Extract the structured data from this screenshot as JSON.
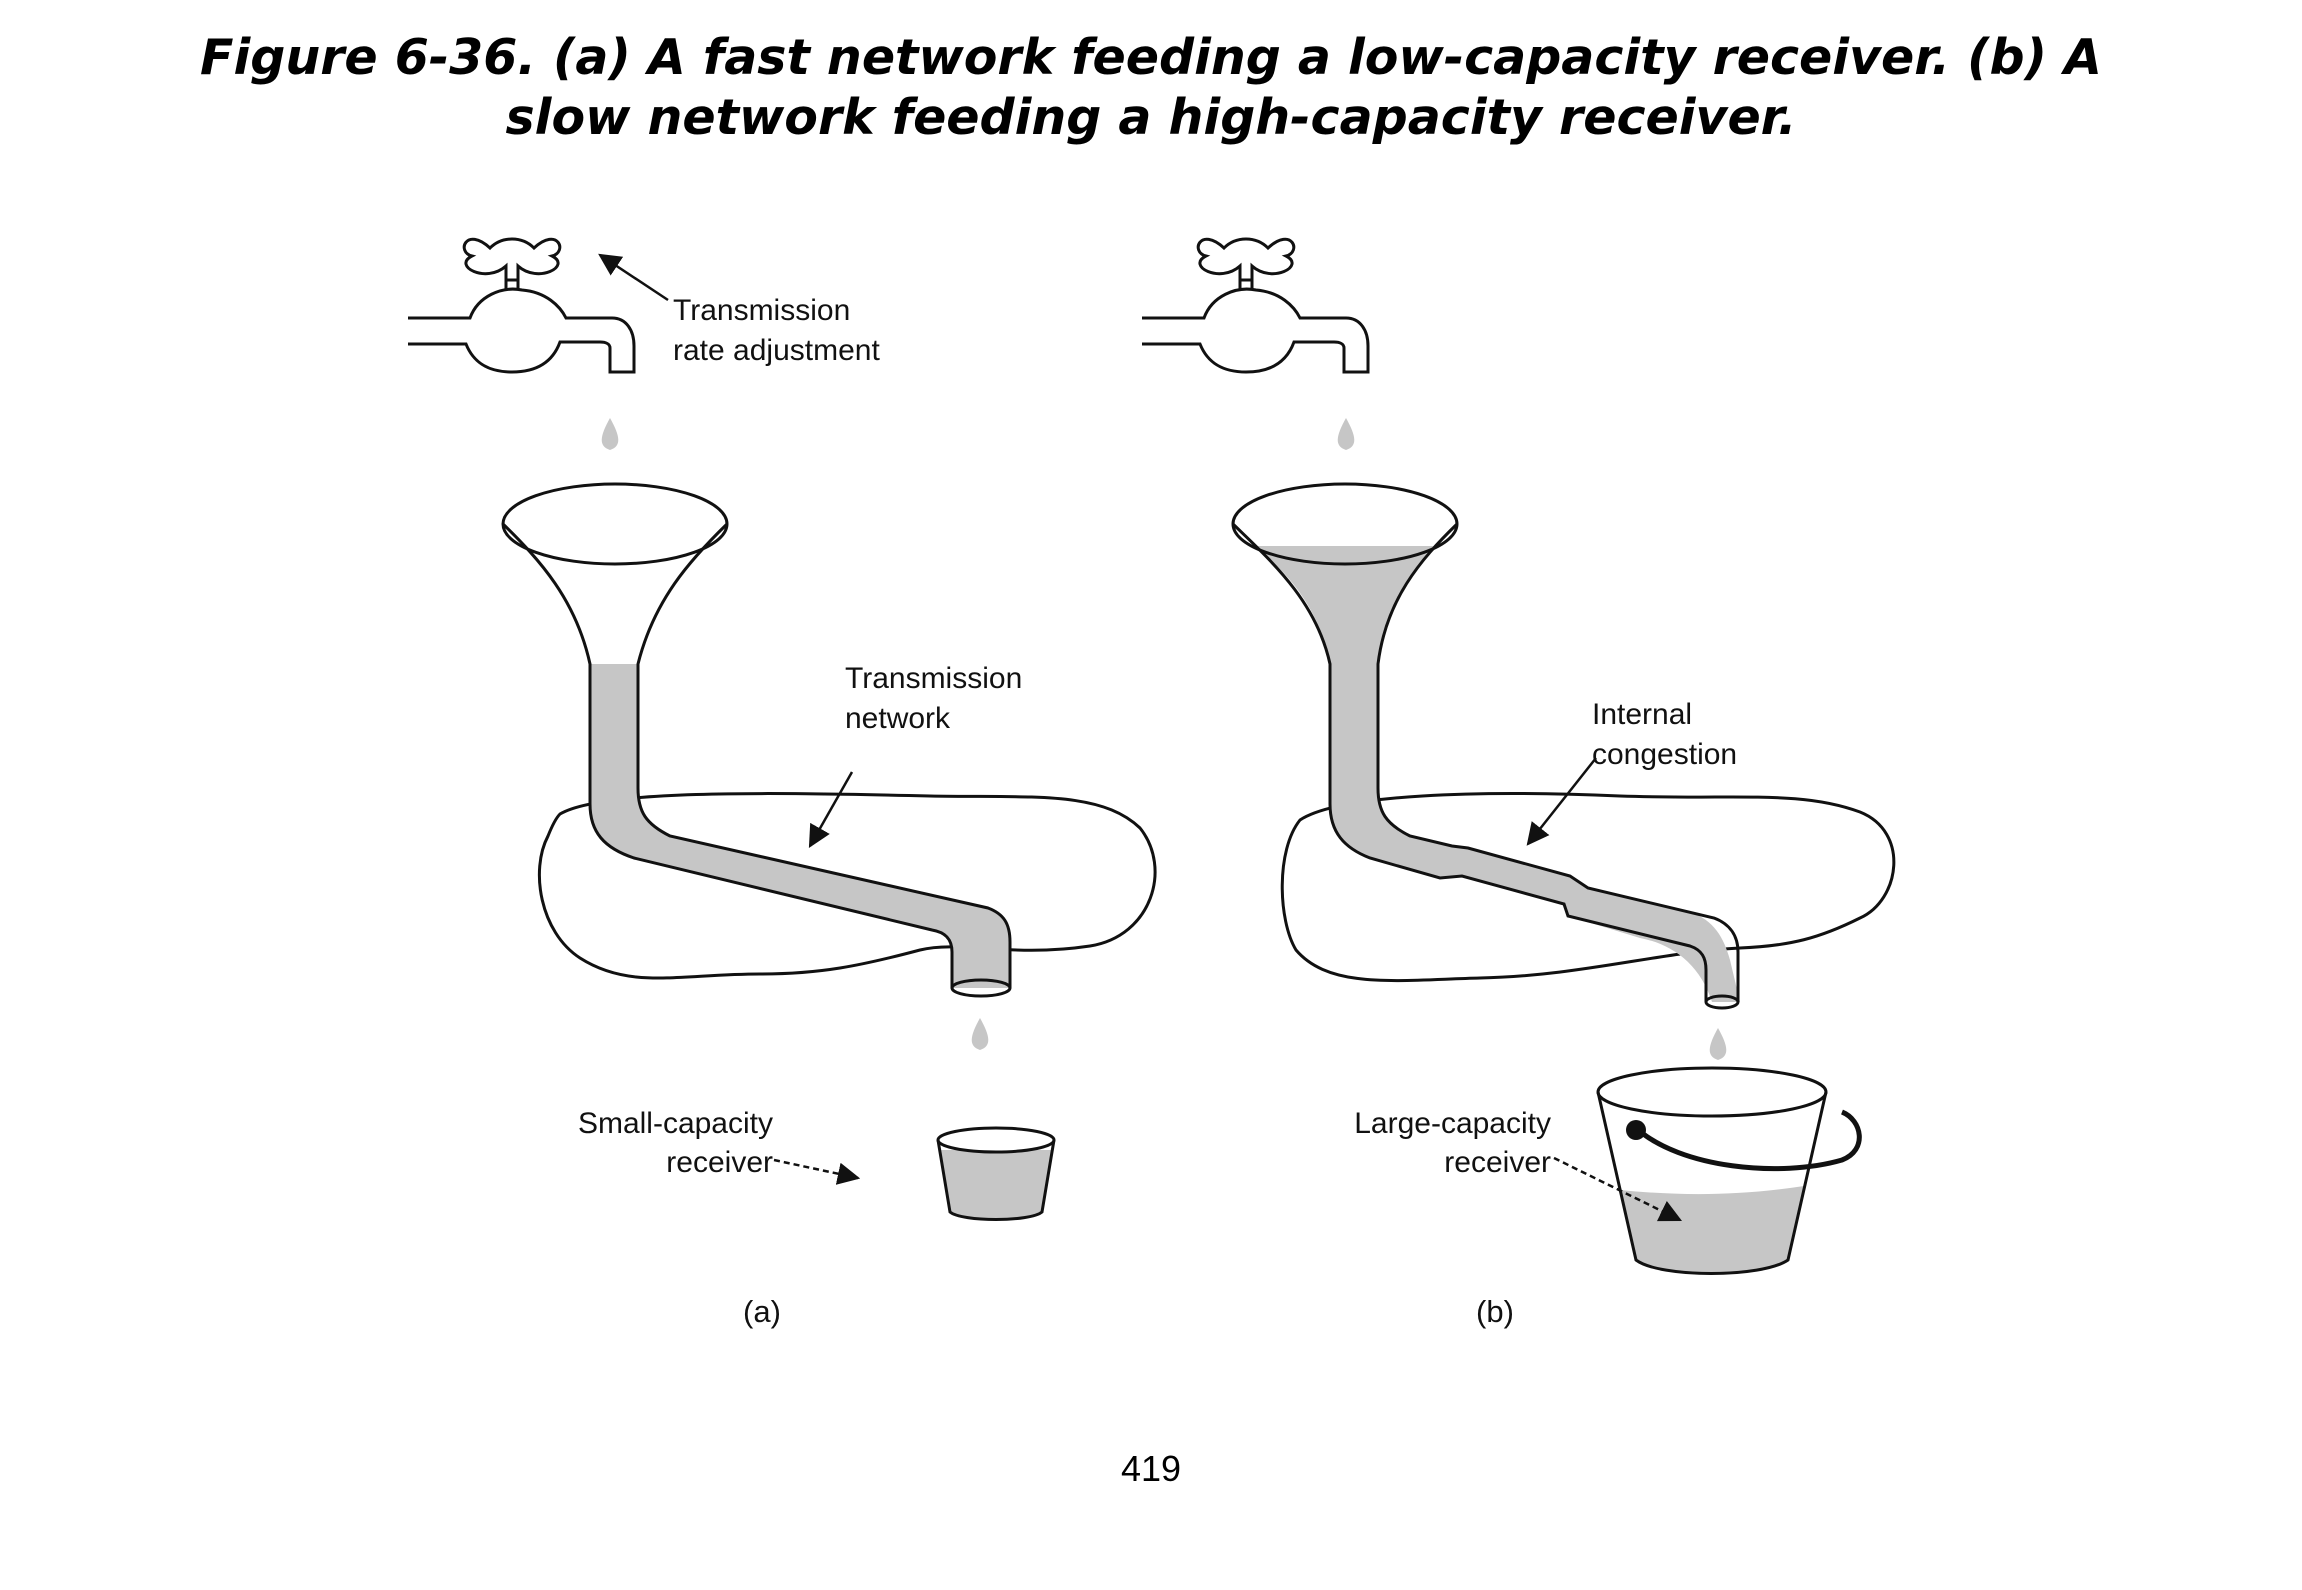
{
  "caption": {
    "line1": "Figure 6-36. (a) A fast network feeding a low-capacity receiver. (b) A",
    "line2": "slow network feeding a high-capacity receiver."
  },
  "panel_a": {
    "faucet_label_1": "Transmission",
    "faucet_label_2": "rate adjustment",
    "network_label_1": "Transmission",
    "network_label_2": "network",
    "receiver_label_1": "Small-capacity",
    "receiver_label_2": "receiver",
    "panel_label": "(a)"
  },
  "panel_b": {
    "congestion_label_1": "Internal",
    "congestion_label_2": "congestion",
    "receiver_label_1": "Large-capacity",
    "receiver_label_2": "receiver",
    "panel_label": "(b)"
  },
  "page_number": "419",
  "colors": {
    "water": "#c6c6c6",
    "outline": "#111111"
  }
}
